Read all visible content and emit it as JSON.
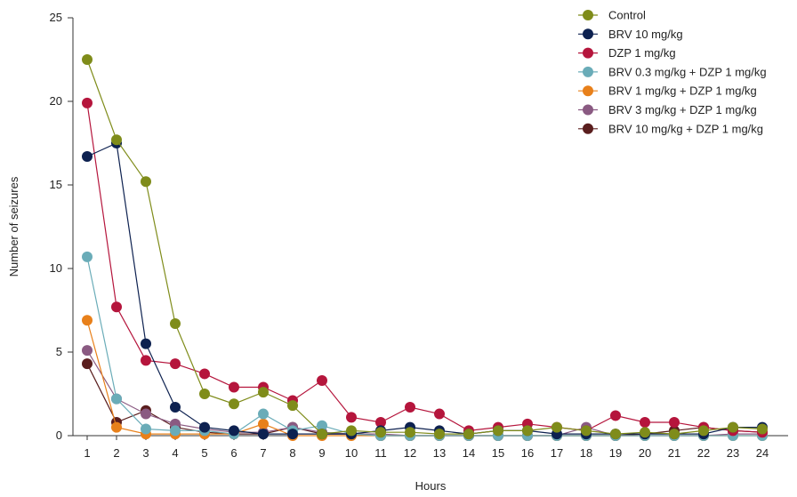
{
  "chart_data": {
    "type": "line",
    "xlabel": "Hours",
    "ylabel": "Number of seizures",
    "ylim": [
      0,
      25
    ],
    "yticks": [
      0,
      5,
      10,
      15,
      20,
      25
    ],
    "x": [
      1,
      2,
      3,
      4,
      5,
      6,
      7,
      8,
      9,
      10,
      11,
      12,
      13,
      14,
      15,
      16,
      17,
      18,
      19,
      20,
      21,
      22,
      23,
      24
    ],
    "legend_position": "top-right",
    "grid": false,
    "series": [
      {
        "name": "Control",
        "color": "#7f8c1a",
        "values": [
          22.5,
          17.7,
          15.2,
          6.7,
          2.5,
          1.9,
          2.6,
          1.8,
          0.1,
          0.3,
          0.2,
          0.2,
          0.1,
          0.1,
          0.3,
          0.3,
          0.5,
          0.3,
          0.1,
          0.2,
          0.1,
          0.3,
          0.5,
          0.4
        ]
      },
      {
        "name": "BRV 10 mg/kg",
        "color": "#0d2150",
        "values": [
          16.7,
          17.5,
          5.5,
          1.7,
          0.5,
          0.3,
          0.1,
          0.1,
          0.1,
          0.1,
          0.3,
          0.5,
          0.3,
          0.1,
          0.3,
          0.3,
          0.1,
          0.1,
          0.1,
          0.1,
          0.1,
          0.1,
          0.5,
          0.5
        ]
      },
      {
        "name": "DZP 1 mg/kg",
        "color": "#b5153c",
        "values": [
          19.9,
          7.7,
          4.5,
          4.3,
          3.7,
          2.9,
          2.9,
          2.1,
          3.3,
          1.1,
          0.8,
          1.7,
          1.3,
          0.3,
          0.5,
          0.7,
          0.5,
          0.3,
          1.2,
          0.8,
          0.8,
          0.5,
          0.3,
          0.2
        ]
      },
      {
        "name": "BRV 0.3 mg/kg + DZP 1 mg/kg",
        "color": "#6aacb8",
        "values": [
          10.7,
          2.2,
          0.4,
          0.3,
          0.3,
          0.1,
          1.3,
          0.3,
          0.6,
          0.1,
          0.0,
          0.0,
          0.0,
          0.0,
          0.0,
          0.0,
          0.0,
          0.0,
          0.0,
          0.0,
          0.0,
          0.0,
          0.0,
          0.0
        ]
      },
      {
        "name": "BRV 1 mg/kg + DZP 1 mg/kg",
        "color": "#e8801a",
        "values": [
          6.9,
          0.5,
          0.1,
          0.1,
          0.1,
          0.1,
          0.7,
          0.0,
          0.0,
          0.0,
          0.0,
          0.0,
          0.0,
          0.0,
          0.0,
          0.0,
          0.0,
          0.0,
          0.0,
          0.0,
          0.0,
          0.0,
          0.0,
          0.0
        ]
      },
      {
        "name": "BRV 3 mg/kg + DZP 1 mg/kg",
        "color": "#8a5a82",
        "values": [
          5.1,
          2.2,
          1.3,
          0.7,
          0.4,
          0.2,
          0.2,
          0.5,
          0.2,
          0.1,
          0.1,
          0.0,
          0.0,
          0.0,
          0.0,
          0.0,
          0.0,
          0.5,
          0.0,
          0.0,
          0.0,
          0.0,
          0.1,
          0.1
        ]
      },
      {
        "name": "BRV 10 mg/kg + DZP 1 mg/kg",
        "color": "#5a1e1e",
        "values": [
          4.3,
          0.8,
          1.5,
          0.5,
          0.2,
          0.1,
          0.1,
          0.5,
          0.1,
          0.1,
          0.0,
          0.0,
          0.0,
          0.0,
          0.0,
          0.0,
          0.0,
          0.0,
          0.0,
          0.1,
          0.3,
          0.5,
          0.3,
          0.2
        ]
      }
    ]
  }
}
